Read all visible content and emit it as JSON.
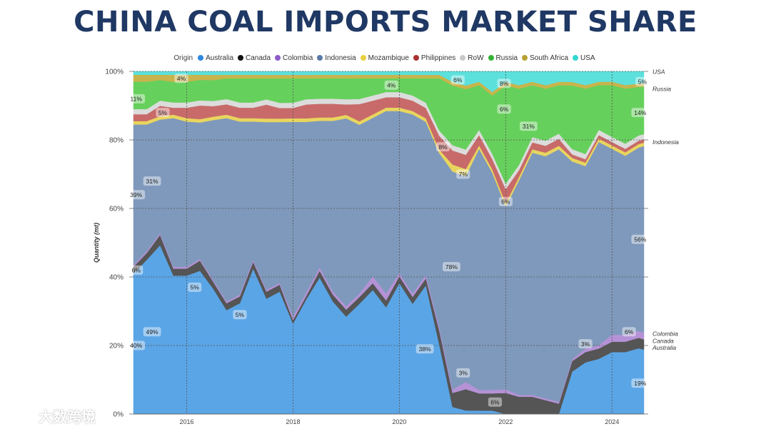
{
  "title": "CHINA COAL IMPORTS MARKET SHARE",
  "watermark": "大数跨境",
  "chart_data": {
    "type": "area",
    "stacked": "percent",
    "legend_title": "Origin",
    "legend_position": "top",
    "ylabel": "Quantity (mt)",
    "ylim": [
      0,
      100
    ],
    "yticks": [
      "0%",
      "20%",
      "40%",
      "60%",
      "80%",
      "100%"
    ],
    "xlim": [
      2015.0,
      2024.6
    ],
    "xticks": [
      "2016",
      "2018",
      "2020",
      "2022",
      "2024"
    ],
    "grid": true,
    "colors": {
      "Australia": "#5aa5e6",
      "Canada": "#555555",
      "Colombia": "#b592d6",
      "Indonesia": "#7f99bc",
      "Mozambique": "#e8d55e",
      "Philippines": "#c86a6a",
      "RoW": "#dcdcdc",
      "Russia": "#66d05c",
      "South Africa": "#c8b44c",
      "USA": "#5ce0dc"
    },
    "legend_dot_colors": {
      "Australia": "#2e86de",
      "Canada": "#111111",
      "Colombia": "#8e5cc9",
      "Indonesia": "#5b79a8",
      "Mozambique": "#e8d040",
      "Philippines": "#a83232",
      "RoW": "#c8c8c8",
      "Russia": "#33b233",
      "South Africa": "#b8a034",
      "USA": "#33d6d1"
    },
    "series_order": [
      "Australia",
      "Canada",
      "Colombia",
      "Indonesia",
      "Mozambique",
      "Philippines",
      "RoW",
      "Russia",
      "South Africa",
      "USA"
    ],
    "x": [
      2015.0,
      2015.25,
      2015.5,
      2015.75,
      2016.0,
      2016.25,
      2016.5,
      2016.75,
      2017.0,
      2017.25,
      2017.5,
      2017.75,
      2018.0,
      2018.25,
      2018.5,
      2018.75,
      2019.0,
      2019.25,
      2019.5,
      2019.75,
      2020.0,
      2020.25,
      2020.5,
      2020.75,
      2021.0,
      2021.25,
      2021.5,
      2021.75,
      2022.0,
      2022.25,
      2022.5,
      2022.75,
      2023.0,
      2023.25,
      2023.5,
      2023.75,
      2024.0,
      2024.25,
      2024.5,
      2024.6
    ],
    "series": [
      {
        "name": "Australia",
        "values": [
          41,
          45,
          49,
          40,
          40,
          42,
          36,
          30,
          32,
          42,
          33,
          35,
          26,
          33,
          40,
          33,
          28,
          32,
          36,
          31,
          38,
          32,
          37,
          20,
          2,
          1,
          1,
          1,
          0,
          0,
          0,
          0,
          0,
          12,
          15,
          16,
          18,
          18,
          19,
          19
        ]
      },
      {
        "name": "Canada",
        "values": [
          2,
          2,
          3,
          2,
          2,
          3,
          2,
          2,
          2,
          2,
          2,
          2,
          1,
          1,
          2,
          2,
          2,
          2,
          2,
          2,
          2,
          2,
          2,
          4,
          4,
          6,
          5,
          5,
          6,
          5,
          5,
          4,
          3,
          3,
          3,
          3,
          3,
          3,
          3,
          3
        ]
      },
      {
        "name": "Colombia",
        "values": [
          0.5,
          0.5,
          0.5,
          0.5,
          0.5,
          0.5,
          0.5,
          0.5,
          0.5,
          0.5,
          0.5,
          0.5,
          1,
          1,
          1,
          1,
          1,
          1,
          2,
          2,
          1,
          1,
          1,
          1,
          1,
          2,
          1,
          1,
          1,
          0.5,
          0.5,
          0.5,
          0.5,
          0.5,
          1,
          1,
          2,
          2,
          2,
          2
        ]
      },
      {
        "name": "Indonesia",
        "values": [
          41,
          37,
          33,
          43,
          42,
          40,
          46,
          53,
          50,
          40,
          48,
          46,
          56,
          49,
          43,
          50,
          54,
          49,
          46,
          53,
          47,
          52,
          44,
          50,
          62,
          58,
          70,
          63,
          52,
          62,
          70,
          70,
          73,
          56,
          53,
          59,
          54,
          52,
          53,
          55
        ]
      },
      {
        "name": "Mozambique",
        "values": [
          1,
          1,
          1,
          1,
          1,
          1,
          1,
          1,
          1,
          1,
          1,
          1,
          1,
          1,
          1,
          1,
          1,
          1,
          1,
          1,
          1,
          1,
          1,
          1,
          2,
          2,
          1,
          1,
          1,
          1,
          1,
          1,
          1,
          1,
          1,
          1,
          1,
          1,
          1,
          1
        ]
      },
      {
        "name": "Philippines",
        "values": [
          2,
          2,
          3,
          2,
          3,
          4,
          3,
          3,
          3,
          3,
          4,
          3,
          3,
          4,
          4,
          4,
          3,
          5,
          4,
          3,
          3,
          3,
          3,
          4,
          4,
          4,
          3,
          3,
          4,
          2,
          2,
          2,
          2,
          1,
          1,
          1,
          1,
          1,
          1,
          1
        ]
      },
      {
        "name": "RoW",
        "values": [
          1.5,
          1.5,
          1.5,
          1.5,
          1.5,
          1.5,
          1.5,
          1.5,
          1.5,
          1.5,
          1.5,
          1.5,
          1.5,
          1.5,
          1.5,
          1.5,
          1.5,
          1.5,
          1.5,
          1.5,
          1.5,
          1.5,
          1.5,
          1.5,
          1.5,
          1.5,
          1.5,
          1.5,
          1.5,
          1.5,
          1.5,
          1.5,
          1.5,
          1.5,
          1.5,
          1.5,
          1.5,
          1.5,
          1.5,
          1.5
        ]
      },
      {
        "name": "Russia",
        "values": [
          8,
          8,
          6,
          6,
          6,
          6,
          6,
          6,
          7,
          7,
          6,
          7,
          7,
          6,
          6,
          6,
          6,
          6,
          5,
          4,
          4,
          5,
          7,
          15,
          17,
          17,
          13,
          17,
          28,
          22,
          15,
          15,
          14,
          18,
          19,
          13,
          15,
          16,
          14,
          14
        ]
      },
      {
        "name": "South Africa",
        "values": [
          2,
          2,
          1.5,
          2,
          2,
          1.5,
          1.5,
          1,
          1,
          1,
          1,
          1,
          1,
          1,
          1,
          1,
          1,
          1,
          1,
          1,
          1,
          1,
          1,
          1,
          1,
          1,
          1,
          1,
          1,
          1,
          1,
          1,
          1,
          1,
          1,
          1,
          1,
          1,
          1,
          1
        ]
      },
      {
        "name": "USA",
        "values": [
          1,
          1,
          1,
          1,
          1,
          1,
          1,
          1,
          1,
          1,
          1,
          1,
          1,
          1,
          1,
          1,
          1,
          1,
          1,
          1,
          1,
          1,
          1,
          1,
          3,
          4,
          3,
          6,
          3,
          4,
          3,
          4,
          3,
          3,
          4,
          3,
          3,
          4,
          3.5,
          3.5
        ]
      }
    ],
    "right_labels": [
      {
        "text": "USA",
        "y": 100
      },
      {
        "text": "Russia",
        "y": 95
      },
      {
        "text": "Indonesia",
        "y": 79.5
      },
      {
        "text": "Colombia",
        "y": 23.5
      },
      {
        "text": "Canada",
        "y": 21.5
      },
      {
        "text": "Australia",
        "y": 19.5
      }
    ],
    "data_labels": [
      {
        "text": "4%",
        "x": 2015.9,
        "y": 98
      },
      {
        "text": "11%",
        "x": 2015.05,
        "y": 92
      },
      {
        "text": "5%",
        "x": 2015.55,
        "y": 88
      },
      {
        "text": "31%",
        "x": 2015.35,
        "y": 68
      },
      {
        "text": "39%",
        "x": 2015.05,
        "y": 64
      },
      {
        "text": "6%",
        "x": 2015.05,
        "y": 42
      },
      {
        "text": "5%",
        "x": 2016.15,
        "y": 37
      },
      {
        "text": "49%",
        "x": 2015.35,
        "y": 24
      },
      {
        "text": "40%",
        "x": 2015.05,
        "y": 20
      },
      {
        "text": "5%",
        "x": 2017.0,
        "y": 29
      },
      {
        "text": "4%",
        "x": 2019.85,
        "y": 96
      },
      {
        "text": "78%",
        "x": 2020.98,
        "y": 43
      },
      {
        "text": "38%",
        "x": 2020.48,
        "y": 19
      },
      {
        "text": "6%",
        "x": 2021.1,
        "y": 97.5
      },
      {
        "text": "8%",
        "x": 2020.82,
        "y": 78
      },
      {
        "text": "7%",
        "x": 2021.2,
        "y": 70
      },
      {
        "text": "3%",
        "x": 2021.2,
        "y": 12
      },
      {
        "text": "8%",
        "x": 2021.97,
        "y": 96.5
      },
      {
        "text": "6%",
        "x": 2021.97,
        "y": 89
      },
      {
        "text": "31%",
        "x": 2022.43,
        "y": 84
      },
      {
        "text": "6%",
        "x": 2022.0,
        "y": 62
      },
      {
        "text": "6%",
        "x": 2021.8,
        "y": 3.5
      },
      {
        "text": "3%",
        "x": 2023.5,
        "y": 20.5
      },
      {
        "text": "5%",
        "x": 2024.57,
        "y": 97
      },
      {
        "text": "14%",
        "x": 2024.53,
        "y": 88
      },
      {
        "text": "56%",
        "x": 2024.53,
        "y": 51
      },
      {
        "text": "6%",
        "x": 2024.32,
        "y": 24
      },
      {
        "text": "19%",
        "x": 2024.53,
        "y": 9
      }
    ]
  }
}
